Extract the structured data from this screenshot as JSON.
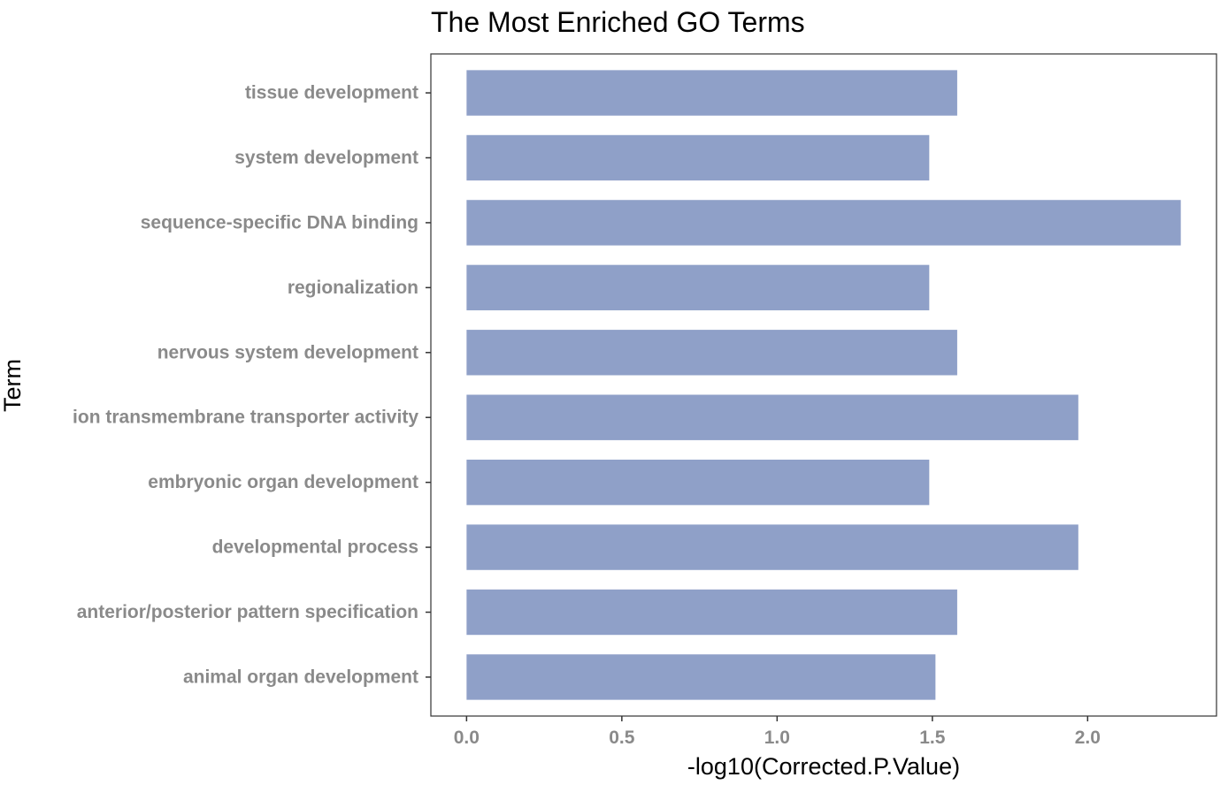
{
  "chart_data": {
    "type": "bar",
    "orientation": "horizontal",
    "title": "The Most Enriched GO Terms",
    "xlabel": "-log10(Corrected.P.Value)",
    "ylabel": "Term",
    "categories": [
      "tissue development",
      "system development",
      "sequence-specific DNA binding",
      "regionalization",
      "nervous system development",
      "ion transmembrane transporter activity",
      "embryonic organ development",
      "developmental process",
      "anterior/posterior pattern specification",
      "animal organ development"
    ],
    "values": [
      1.58,
      1.49,
      2.3,
      1.49,
      1.58,
      1.97,
      1.49,
      1.97,
      1.58,
      1.51
    ],
    "xlim": [
      -0.115,
      2.415
    ],
    "xticks": [
      0.0,
      0.5,
      1.0,
      1.5,
      2.0
    ],
    "xtick_labels": [
      "0.0",
      "0.5",
      "1.0",
      "1.5",
      "2.0"
    ],
    "grid": false,
    "legend": "none",
    "bar_color": "#8fa0c8"
  }
}
